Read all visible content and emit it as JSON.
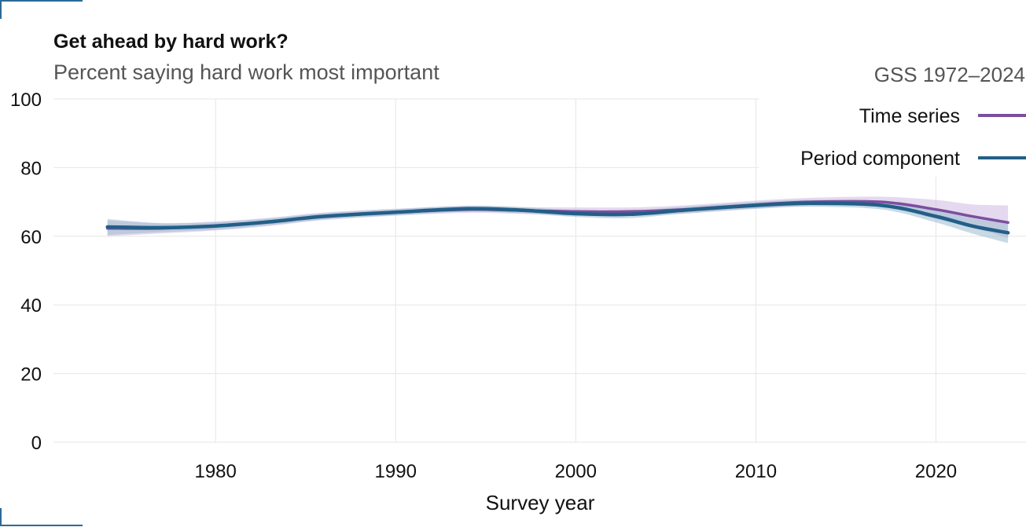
{
  "chart_data": {
    "type": "line",
    "title": "Get ahead by hard work?",
    "subtitle": "Percent saying hard work most important",
    "xlabel": "Survey year",
    "ylabel": "",
    "xlim": [
      1971,
      2025
    ],
    "ylim": [
      0,
      100
    ],
    "x_ticks": [
      1980,
      1990,
      2000,
      2010,
      2020
    ],
    "y_ticks": [
      0,
      20,
      40,
      60,
      80,
      100
    ],
    "grid": true,
    "legend": {
      "title": "GSS 1972–2024",
      "placement": "top-right"
    },
    "series": [
      {
        "name": "Time series",
        "color": "#7b4fa0",
        "band_color": "#cdb9e0",
        "points": [
          {
            "x": 1974,
            "y": 62.3,
            "lo": 60.0,
            "hi": 64.6
          },
          {
            "x": 1977,
            "y": 62.3,
            "lo": 60.8,
            "hi": 63.8
          },
          {
            "x": 1980,
            "y": 63.0,
            "lo": 61.7,
            "hi": 64.3
          },
          {
            "x": 1983,
            "y": 64.2,
            "lo": 63.0,
            "hi": 65.4
          },
          {
            "x": 1986,
            "y": 65.8,
            "lo": 64.7,
            "hi": 66.9
          },
          {
            "x": 1990,
            "y": 67.0,
            "lo": 66.0,
            "hi": 68.0
          },
          {
            "x": 1994,
            "y": 67.8,
            "lo": 66.8,
            "hi": 68.8
          },
          {
            "x": 1997,
            "y": 67.5,
            "lo": 66.5,
            "hi": 68.5
          },
          {
            "x": 2000,
            "y": 67.2,
            "lo": 66.0,
            "hi": 68.4
          },
          {
            "x": 2003,
            "y": 67.2,
            "lo": 66.0,
            "hi": 68.4
          },
          {
            "x": 2006,
            "y": 67.8,
            "lo": 66.6,
            "hi": 69.0
          },
          {
            "x": 2010,
            "y": 69.2,
            "lo": 68.0,
            "hi": 70.4
          },
          {
            "x": 2013,
            "y": 70.0,
            "lo": 68.8,
            "hi": 71.2
          },
          {
            "x": 2017,
            "y": 70.0,
            "lo": 68.5,
            "hi": 71.5
          },
          {
            "x": 2020,
            "y": 67.8,
            "lo": 65.0,
            "hi": 70.6
          },
          {
            "x": 2022,
            "y": 65.8,
            "lo": 62.5,
            "hi": 69.3
          },
          {
            "x": 2024,
            "y": 64.0,
            "lo": 59.5,
            "hi": 69.0
          }
        ]
      },
      {
        "name": "Period component",
        "color": "#225f87",
        "band_color": "#9dbbd0",
        "points": [
          {
            "x": 1974,
            "y": 62.7,
            "lo": 60.4,
            "hi": 65.0
          },
          {
            "x": 1977,
            "y": 62.5,
            "lo": 61.2,
            "hi": 63.8
          },
          {
            "x": 1980,
            "y": 63.0,
            "lo": 61.9,
            "hi": 64.1
          },
          {
            "x": 1983,
            "y": 64.2,
            "lo": 63.2,
            "hi": 65.2
          },
          {
            "x": 1986,
            "y": 65.8,
            "lo": 64.9,
            "hi": 66.7
          },
          {
            "x": 1990,
            "y": 67.0,
            "lo": 66.1,
            "hi": 67.9
          },
          {
            "x": 1994,
            "y": 68.0,
            "lo": 67.1,
            "hi": 68.9
          },
          {
            "x": 1997,
            "y": 67.6,
            "lo": 66.7,
            "hi": 68.5
          },
          {
            "x": 2000,
            "y": 66.6,
            "lo": 65.6,
            "hi": 67.6
          },
          {
            "x": 2003,
            "y": 66.4,
            "lo": 65.3,
            "hi": 67.5
          },
          {
            "x": 2006,
            "y": 67.6,
            "lo": 66.6,
            "hi": 68.6
          },
          {
            "x": 2010,
            "y": 69.0,
            "lo": 68.0,
            "hi": 70.0
          },
          {
            "x": 2013,
            "y": 69.6,
            "lo": 68.6,
            "hi": 70.6
          },
          {
            "x": 2017,
            "y": 69.0,
            "lo": 67.8,
            "hi": 70.2
          },
          {
            "x": 2020,
            "y": 65.8,
            "lo": 64.0,
            "hi": 67.6
          },
          {
            "x": 2022,
            "y": 63.0,
            "lo": 60.8,
            "hi": 65.2
          },
          {
            "x": 2024,
            "y": 61.0,
            "lo": 58.0,
            "hi": 64.0
          }
        ]
      }
    ]
  }
}
